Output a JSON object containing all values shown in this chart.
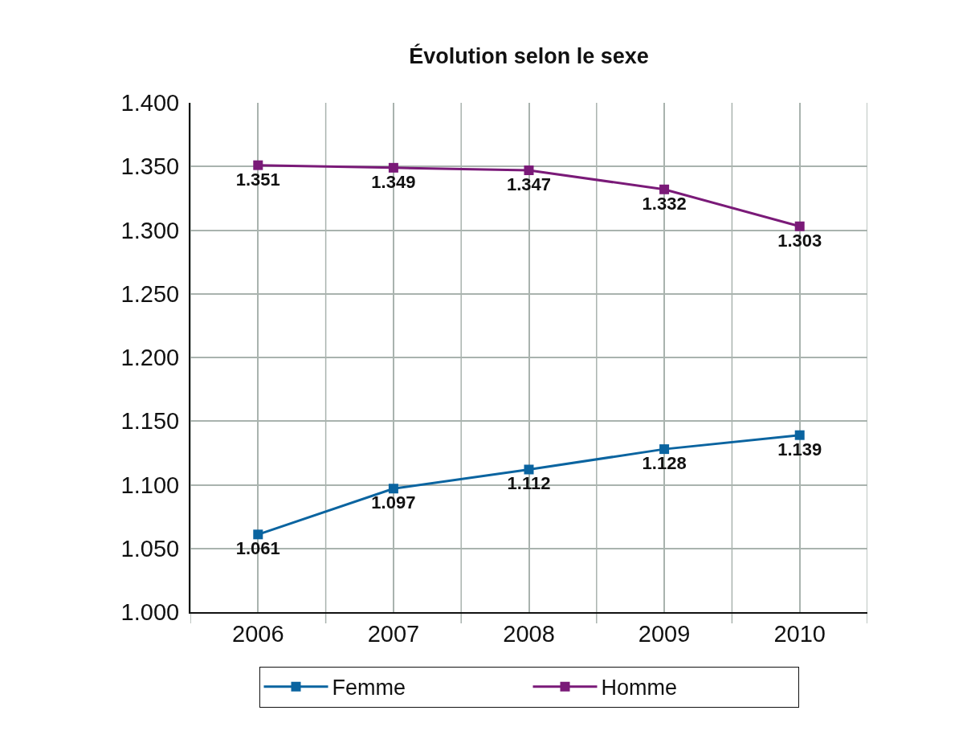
{
  "chart_data": {
    "type": "line",
    "title": "Évolution selon le sexe",
    "categories": [
      "2006",
      "2007",
      "2008",
      "2009",
      "2010"
    ],
    "series": [
      {
        "name": "Femme",
        "color": "#0a64a0",
        "values": [
          1.061,
          1.097,
          1.112,
          1.128,
          1.139
        ]
      },
      {
        "name": "Homme",
        "color": "#7a1a78",
        "values": [
          1.351,
          1.349,
          1.347,
          1.332,
          1.303
        ]
      }
    ],
    "ylim": [
      1.0,
      1.4
    ],
    "yticks": [
      {
        "value": 1.0,
        "label": "1.000"
      },
      {
        "value": 1.05,
        "label": "1.050"
      },
      {
        "value": 1.1,
        "label": "1.100"
      },
      {
        "value": 1.15,
        "label": "1.150"
      },
      {
        "value": 1.2,
        "label": "1.200"
      },
      {
        "value": 1.25,
        "label": "1.250"
      },
      {
        "value": 1.3,
        "label": "1.300"
      },
      {
        "value": 1.35,
        "label": "1.350"
      },
      {
        "value": 1.4,
        "label": "1.400"
      }
    ],
    "grid": true,
    "legend": "bottom",
    "marker": "square",
    "line_style": "solid",
    "data_labels": true
  }
}
